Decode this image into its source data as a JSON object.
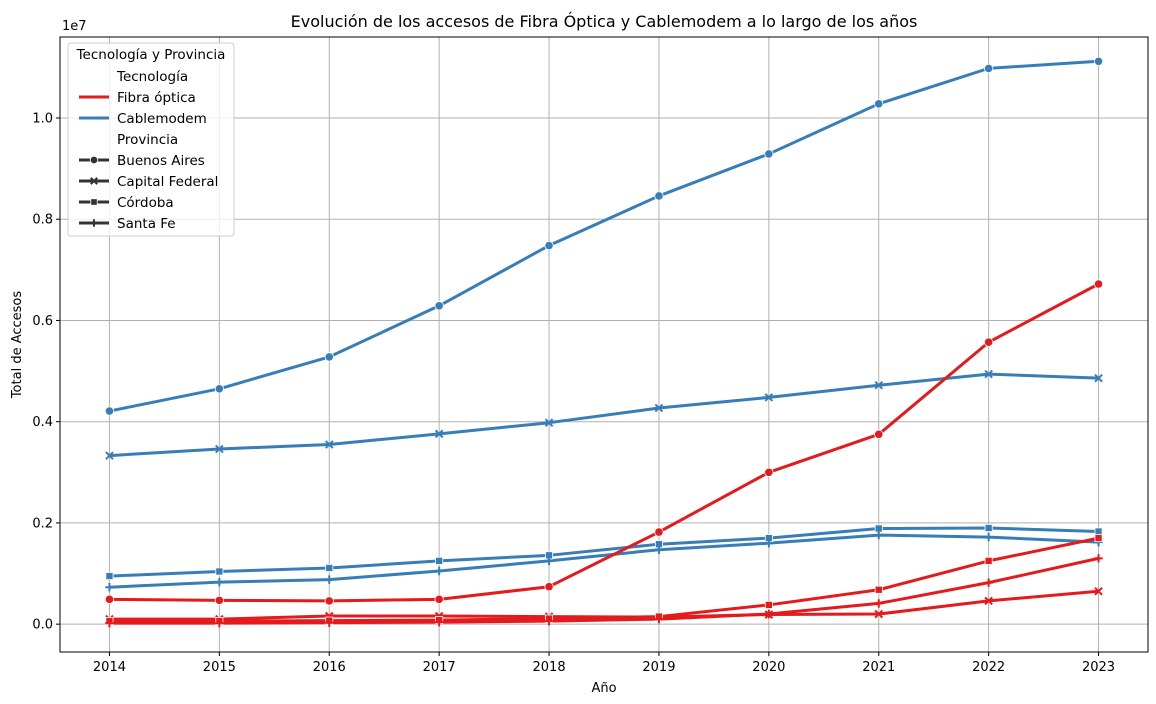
{
  "chart_data": {
    "type": "line",
    "title": "Evolución de los accesos de Fibra Óptica y Cablemodem a lo largo de los años",
    "xlabel": "Año",
    "ylabel": "Total de Accesos",
    "y_offset_label": "1e7",
    "x": [
      2014,
      2015,
      2016,
      2017,
      2018,
      2019,
      2020,
      2021,
      2022,
      2023
    ],
    "xlim": [
      2013.55,
      2023.45
    ],
    "ylim": [
      -0.055,
      1.16
    ],
    "y_scale": 10000000,
    "y_ticks": [
      0.0,
      0.2,
      0.4,
      0.6,
      0.8,
      1.0
    ],
    "y_tick_labels": [
      "0.0",
      "0.2",
      "0.4",
      "0.6",
      "0.8",
      "1.0"
    ],
    "x_tick_labels": [
      "2014",
      "2015",
      "2016",
      "2017",
      "2018",
      "2019",
      "2020",
      "2021",
      "2022",
      "2023"
    ],
    "grid": true,
    "legend_placement": "top-left",
    "colors": {
      "fibra": "#e41a1c",
      "cable": "#377eb8",
      "legend_marker": "#333333"
    },
    "legend": {
      "title": "Tecnología y Provincia",
      "hue_header": "Tecnología",
      "hue_entries": [
        "Fibra óptica",
        "Cablemodem"
      ],
      "style_header": "Provincia",
      "style_entries": [
        "Buenos Aires",
        "Capital Federal",
        "Córdoba",
        "Santa Fe"
      ]
    },
    "series": [
      {
        "tecnologia": "Fibra óptica",
        "provincia": "Buenos Aires",
        "marker": "circle",
        "values": [
          0.049,
          0.047,
          0.046,
          0.049,
          0.074,
          0.182,
          0.3,
          0.375,
          0.557,
          0.672
        ]
      },
      {
        "tecnologia": "Fibra óptica",
        "provincia": "Capital Federal",
        "marker": "x",
        "values": [
          0.01,
          0.01,
          0.016,
          0.016,
          0.015,
          0.014,
          0.019,
          0.02,
          0.046,
          0.065
        ]
      },
      {
        "tecnologia": "Fibra óptica",
        "provincia": "Córdoba",
        "marker": "square",
        "values": [
          0.006,
          0.006,
          0.007,
          0.008,
          0.011,
          0.015,
          0.038,
          0.068,
          0.125,
          0.17
        ]
      },
      {
        "tecnologia": "Fibra óptica",
        "provincia": "Santa Fe",
        "marker": "plus",
        "values": [
          0.002,
          0.002,
          0.003,
          0.004,
          0.006,
          0.01,
          0.02,
          0.041,
          0.082,
          0.13
        ]
      },
      {
        "tecnologia": "Cablemodem",
        "provincia": "Buenos Aires",
        "marker": "circle",
        "values": [
          0.421,
          0.465,
          0.528,
          0.629,
          0.748,
          0.846,
          0.929,
          1.028,
          1.098,
          1.112
        ]
      },
      {
        "tecnologia": "Cablemodem",
        "provincia": "Capital Federal",
        "marker": "x",
        "values": [
          0.333,
          0.346,
          0.355,
          0.376,
          0.398,
          0.427,
          0.448,
          0.472,
          0.494,
          0.486
        ]
      },
      {
        "tecnologia": "Cablemodem",
        "provincia": "Córdoba",
        "marker": "square",
        "values": [
          0.095,
          0.104,
          0.111,
          0.125,
          0.136,
          0.158,
          0.17,
          0.189,
          0.19,
          0.183
        ]
      },
      {
        "tecnologia": "Cablemodem",
        "provincia": "Santa Fe",
        "marker": "plus",
        "values": [
          0.073,
          0.083,
          0.088,
          0.105,
          0.125,
          0.147,
          0.16,
          0.176,
          0.172,
          0.162
        ]
      }
    ]
  }
}
